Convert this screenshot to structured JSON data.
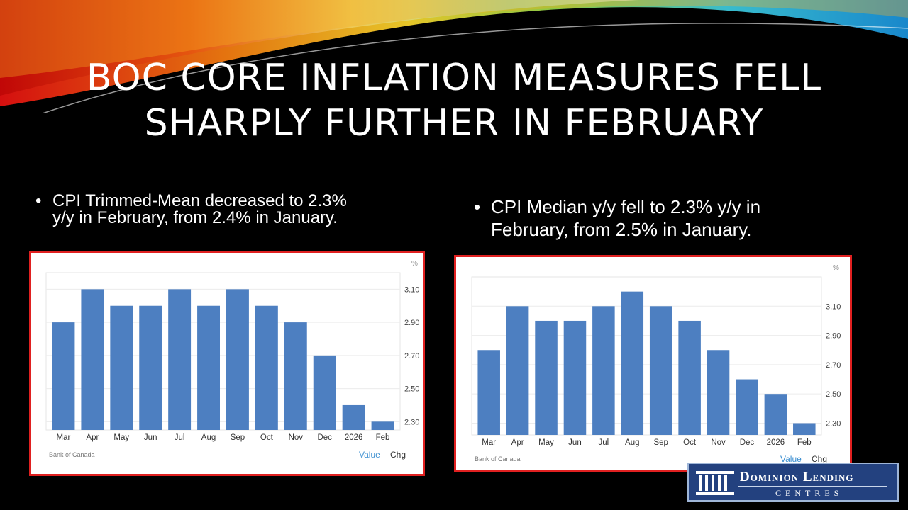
{
  "slide": {
    "title": "BOC CORE INFLATION MEASURES FELL SHARPLY FURTHER IN FEBRUARY",
    "bullet_left": "CPI Trimmed-Mean decreased to 2.3% y/y in February, from 2.4% in January.",
    "bullet_right": "CPI Median y/y fell to 2.3% y/y in February, from 2.5% in January.",
    "bullet_symbol": "•"
  },
  "logo": {
    "line1": "Dominion Lending",
    "line2": "CENTRES"
  },
  "colors": {
    "bar": "#4d7fc1",
    "frame": "#e02020",
    "value_tab": "#3a8ed0",
    "logo_bg": "#23417f"
  },
  "chart_data": [
    {
      "type": "bar",
      "categories": [
        "Mar",
        "Apr",
        "May",
        "Jun",
        "Jul",
        "Aug",
        "Sep",
        "Oct",
        "Nov",
        "Dec",
        "2026",
        "Feb"
      ],
      "values": [
        2.9,
        3.1,
        3.0,
        3.0,
        3.1,
        3.0,
        3.1,
        3.0,
        2.9,
        2.7,
        2.4,
        2.3
      ],
      "yticks": [
        "3.10",
        "2.90",
        "2.70",
        "2.50",
        "2.30"
      ],
      "unit": "%",
      "source": "Bank of Canada",
      "tabs": [
        "Value",
        "Chg"
      ],
      "ylim": [
        2.25,
        3.2
      ],
      "grid": true
    },
    {
      "type": "bar",
      "categories": [
        "Mar",
        "Apr",
        "May",
        "Jun",
        "Jul",
        "Aug",
        "Sep",
        "Oct",
        "Nov",
        "Dec",
        "2026",
        "Feb"
      ],
      "values": [
        2.8,
        3.1,
        3.0,
        3.0,
        3.1,
        3.2,
        3.1,
        3.0,
        2.8,
        2.6,
        2.5,
        2.3
      ],
      "yticks": [
        "3.10",
        "2.90",
        "2.70",
        "2.50",
        "2.30"
      ],
      "unit": "%",
      "source": "Bank of Canada",
      "tabs": [
        "Value",
        "Chg"
      ],
      "ylim": [
        2.22,
        3.3
      ],
      "grid": true
    }
  ]
}
